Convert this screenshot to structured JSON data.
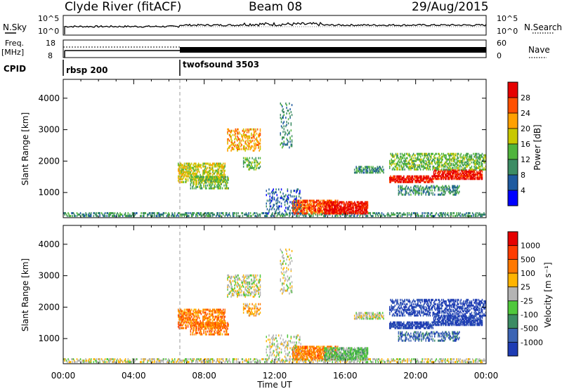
{
  "header": {
    "station": "Clyde River (fitACF)",
    "beam": "Beam 08",
    "date": "29/Aug/2015"
  },
  "panels": {
    "nsky_label": "N.Sky",
    "nsearch_label": "N.Search",
    "freq_label": "Freq.",
    "freq_unit": "[MHz]",
    "nave_label": "Nave",
    "cpid_label": "CPID",
    "nsky_ticks": [
      "10^5",
      "10^0"
    ],
    "freq_ticks": [
      "18",
      "8"
    ],
    "nave_ticks": [
      "60",
      "0"
    ],
    "cpid_segments": [
      {
        "name": "rbsp 200",
        "start": "00:00"
      },
      {
        "name": "twofsound 3503",
        "start": "06:30"
      }
    ]
  },
  "chart_data": [
    {
      "type": "heatmap",
      "name": "power",
      "xlabel": "Time UT",
      "ylabel": "Slant Range [km]",
      "x_ticks": [
        "00:00",
        "04:00",
        "08:00",
        "12:00",
        "16:00",
        "20:00",
        "00:00"
      ],
      "xlim_hours": [
        0,
        24
      ],
      "y_ticks": [
        1000,
        2000,
        3000,
        4000
      ],
      "ylim": [
        200,
        4600
      ],
      "colorbar": {
        "label": "Power [dB]",
        "ticks": [
          4,
          8,
          12,
          16,
          20,
          24,
          28
        ],
        "colors": [
          "#0000ff",
          "#1e5aa0",
          "#3c8c64",
          "#50b43c",
          "#c8c800",
          "#ffa000",
          "#ff5000",
          "#e60000"
        ]
      }
    },
    {
      "type": "heatmap",
      "name": "velocity",
      "xlabel": "Time UT",
      "ylabel": "Slant Range [km]",
      "x_ticks": [
        "00:00",
        "04:00",
        "08:00",
        "12:00",
        "16:00",
        "20:00",
        "00:00"
      ],
      "xlim_hours": [
        0,
        24
      ],
      "y_ticks": [
        1000,
        2000,
        3000,
        4000
      ],
      "ylim": [
        200,
        4600
      ],
      "colorbar": {
        "label": "Velocity [m s⁻¹]",
        "ticks": [
          "1000",
          "500",
          "100",
          "25",
          "-25",
          "-100",
          "-500",
          "-1000"
        ],
        "colors": [
          "#1e3cb4",
          "#3c64b4",
          "#3c8c64",
          "#50c83c",
          "#b4b4b4",
          "#ffb400",
          "#ff7800",
          "#ff3c00",
          "#e60000"
        ]
      }
    }
  ],
  "time_axis_label": "Time UT"
}
